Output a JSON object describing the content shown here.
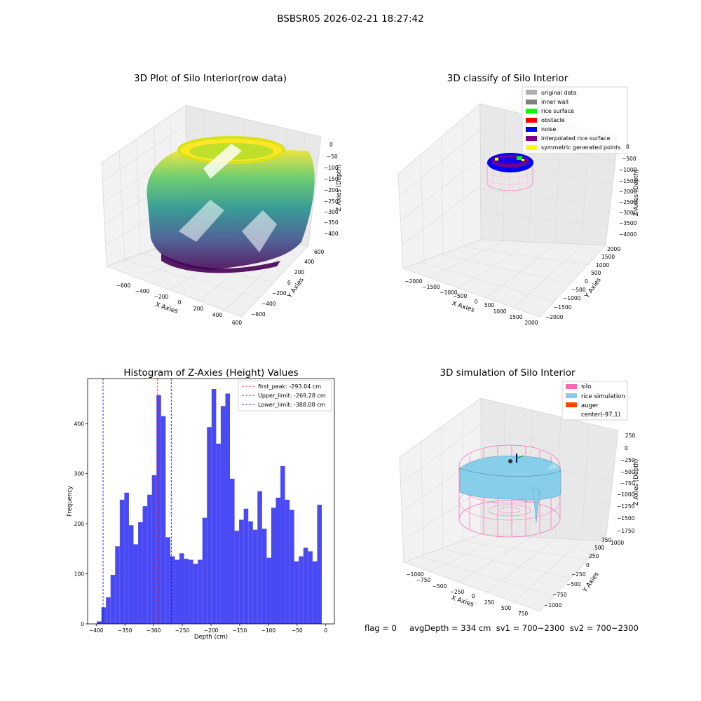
{
  "figure": {
    "suptitle": "BSBSR05 2026-02-21 18:27:42",
    "footer": "flag = 0     avgDepth = 334 cm  sv1 = 700~2300  sv2 = 700~2300"
  },
  "colors": {
    "hist_bar": "#4a4af5",
    "first_peak_line": "#ff0000",
    "limit_lines": "#0000cc",
    "silo": "#ff69b4",
    "rice": "#87ceeb",
    "auger": "#ff4500",
    "inner_wall": "#808080",
    "original": "#b0b0b0",
    "rice_surface": "#00ff00",
    "obstacle": "#ff0000",
    "noise": "#0000ff",
    "interp": "#800080",
    "symmetric": "#ffff00"
  },
  "panels": {
    "raw": {
      "title": "3D Plot of Silo Interior(row data)",
      "xlabel": "X Axies",
      "ylabel": "Y Axies",
      "zlabel": "Z Axies (Depth)",
      "xticks": [
        "−600",
        "−400",
        "−200",
        "0",
        "200",
        "400",
        "600"
      ],
      "yticks": [
        "−600",
        "−400",
        "−200",
        "0",
        "200",
        "400",
        "600"
      ],
      "zticks": [
        "0",
        "−50",
        "−100",
        "−150",
        "−200",
        "−250",
        "−300",
        "−350",
        "−400"
      ]
    },
    "classify": {
      "title": "3D classify of Silo Interior",
      "xlabel": "X Axies",
      "ylabel": "Y Axies",
      "zlabel": "Z Axies (Depth)",
      "xticks": [
        "−2000",
        "−1500",
        "−1000",
        "−500",
        "0",
        "500",
        "1000",
        "1500",
        "2000"
      ],
      "yticks": [
        "−2000",
        "−1500",
        "−1000",
        "−500",
        "0",
        "500",
        "1000",
        "1500",
        "2000"
      ],
      "zticks": [
        "0",
        "−500",
        "−1000",
        "−1500",
        "−2000",
        "−2500",
        "−3000",
        "−3500",
        "−4000"
      ],
      "legend": [
        {
          "label": "original data",
          "color": "#b0b0b0"
        },
        {
          "label": "inner wall",
          "color": "#808080"
        },
        {
          "label": "rice surface",
          "color": "#00ff00"
        },
        {
          "label": "obstacle",
          "color": "#ff0000"
        },
        {
          "label": "noise",
          "color": "#0000ff"
        },
        {
          "label": "interpolated rice surface",
          "color": "#800080"
        },
        {
          "label": "symmetric generated points",
          "color": "#ffff00"
        }
      ]
    },
    "simulation": {
      "title": "3D simulation of Silo Interior",
      "xlabel": "X Axies",
      "ylabel": "Y Axies",
      "zlabel": "Z Axies (Depth)",
      "xticks": [
        "−1000",
        "−750",
        "−500",
        "−250",
        "0",
        "250",
        "500",
        "750"
      ],
      "yticks": [
        "−1000",
        "−750",
        "−500",
        "−250",
        "0",
        "250",
        "500",
        "750",
        "1000"
      ],
      "zticks": [
        "250",
        "0",
        "−250",
        "−500",
        "−750",
        "−1000",
        "−1250",
        "−1500",
        "−1750"
      ],
      "legend": [
        {
          "label": "silo",
          "color": "#ff69b4"
        },
        {
          "label": "rice simulation",
          "color": "#87ceeb"
        },
        {
          "label": "auger",
          "color": "#ff4500"
        },
        {
          "label": "center(-97,1)",
          "color": ""
        }
      ]
    }
  },
  "chart_data": [
    {
      "type": "bar",
      "title": "Histogram of Z-Axies (Height) Values",
      "xlabel": "Depth (cm)",
      "ylabel": "Frequency",
      "xlim": [
        -415,
        15
      ],
      "ylim": [
        0,
        490
      ],
      "xticks": [
        -400,
        -350,
        -300,
        -250,
        -200,
        -150,
        -100,
        -50,
        0
      ],
      "yticks": [
        0,
        100,
        200,
        300,
        400
      ],
      "bin_start": -399,
      "bin_width": 8,
      "values": [
        5,
        33,
        53,
        98,
        155,
        248,
        262,
        197,
        159,
        203,
        235,
        258,
        297,
        457,
        415,
        173,
        135,
        128,
        141,
        130,
        128,
        120,
        128,
        212,
        393,
        469,
        360,
        435,
        460,
        290,
        186,
        208,
        230,
        205,
        188,
        265,
        190,
        132,
        232,
        252,
        315,
        248,
        228,
        125,
        135,
        152,
        145,
        125,
        238
      ],
      "vlines": [
        {
          "label": "first_peak: -293.04 cm",
          "x": -293.04,
          "color": "#ff0000"
        },
        {
          "label": "Upper_limit: -269.28 cm",
          "x": -269.28,
          "color": "#0000cc"
        },
        {
          "label": "Lower_limit: -388.08 cm",
          "x": -388.08,
          "color": "#0000cc"
        }
      ],
      "legend_position": "upper right"
    }
  ]
}
